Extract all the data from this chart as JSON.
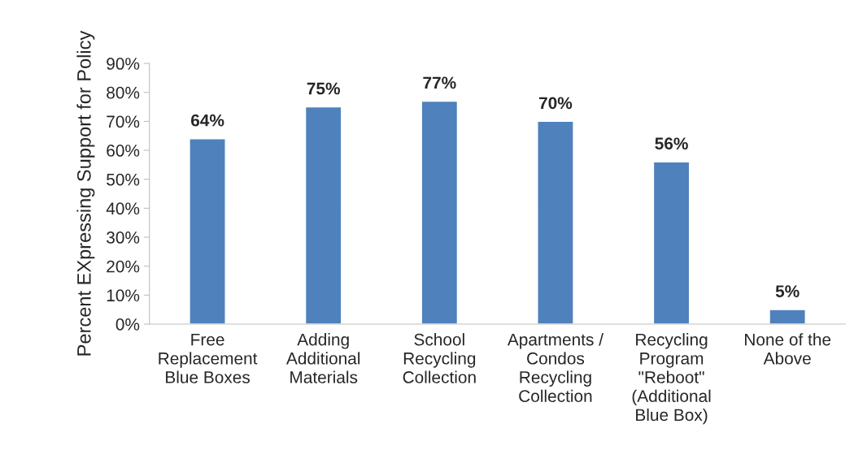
{
  "chart_data": {
    "type": "bar",
    "ylabel": "Percent EXpressing Support for Policy",
    "categories": [
      "Free\nReplacement\nBlue Boxes",
      "Adding\nAdditional\nMaterials",
      "School\nRecycling\nCollection",
      "Apartments /\nCondos\nRecycling\nCollection",
      "Recycling\nProgram\n\"Reboot\"\n(Additional\nBlue Box)",
      "None of the\nAbove"
    ],
    "values": [
      64,
      75,
      77,
      70,
      56,
      5
    ],
    "value_labels": [
      "64%",
      "75%",
      "77%",
      "70%",
      "56%",
      "5%"
    ],
    "color": "#4f81bd",
    "ylim": [
      0,
      90
    ],
    "yticks": [
      {
        "value": 0,
        "label": "0%"
      },
      {
        "value": 10,
        "label": "10%"
      },
      {
        "value": 20,
        "label": "20%"
      },
      {
        "value": 30,
        "label": "30%"
      },
      {
        "value": 40,
        "label": "40%"
      },
      {
        "value": 50,
        "label": "50%"
      },
      {
        "value": 60,
        "label": "60%"
      },
      {
        "value": 70,
        "label": "70%"
      },
      {
        "value": 80,
        "label": "80%"
      },
      {
        "value": 90,
        "label": "90%"
      }
    ],
    "grid": false,
    "legend": false
  }
}
